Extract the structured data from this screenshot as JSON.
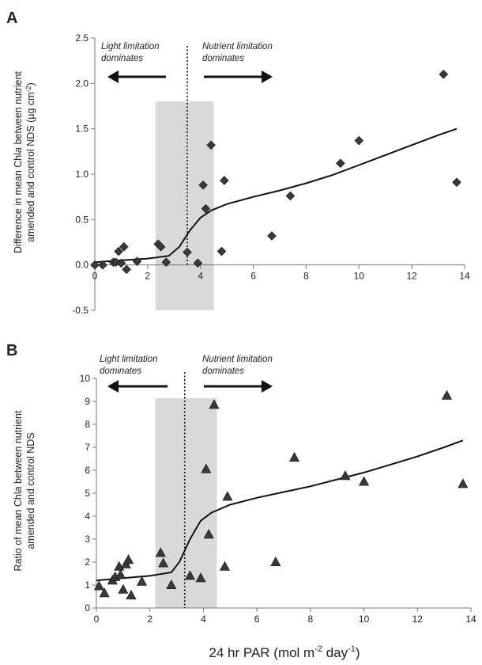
{
  "chart_data": [
    {
      "panel": "A",
      "type": "scatter",
      "ylabel_lines": [
        "Difference in mean  Chl",
        "a",
        " between nutrient",
        "amended and control NDS (µg cm",
        "-2",
        ")"
      ],
      "xlim": [
        0,
        14
      ],
      "ylim": [
        -0.5,
        2.5
      ],
      "xticks": [
        "0",
        "2",
        "4",
        "6",
        "8",
        "10",
        "12",
        "14"
      ],
      "yticks": [
        "-0.5",
        "0.0",
        "0.5",
        "1.0",
        "1.5",
        "2.0",
        "2.5"
      ],
      "threshold_x": 3.5,
      "shaded_range": [
        2.3,
        4.5
      ],
      "annotations": {
        "left_line1": "Light limitation",
        "left_line2": "dominates",
        "right_line1": "Nutrient limitation",
        "right_line2": "dominates"
      },
      "marker": "diamond",
      "points": [
        [
          0,
          0.0
        ],
        [
          0.3,
          0.0
        ],
        [
          0.7,
          0.03
        ],
        [
          0.8,
          0.03
        ],
        [
          0.9,
          0.15
        ],
        [
          1.0,
          0.02
        ],
        [
          1.1,
          0.2
        ],
        [
          1.2,
          -0.05
        ],
        [
          1.6,
          0.04
        ],
        [
          2.4,
          0.23
        ],
        [
          2.5,
          0.2
        ],
        [
          2.7,
          0.03
        ],
        [
          3.5,
          0.14
        ],
        [
          3.9,
          0.02
        ],
        [
          4.1,
          0.88
        ],
        [
          4.2,
          0.62
        ],
        [
          4.4,
          1.32
        ],
        [
          4.8,
          0.15
        ],
        [
          4.9,
          0.93
        ],
        [
          6.7,
          0.32
        ],
        [
          7.4,
          0.76
        ],
        [
          9.3,
          1.12
        ],
        [
          10.0,
          1.37
        ],
        [
          13.2,
          2.1
        ],
        [
          13.7,
          0.91
        ]
      ],
      "trend": [
        [
          0,
          0.03
        ],
        [
          1,
          0.05
        ],
        [
          2,
          0.07
        ],
        [
          2.8,
          0.1
        ],
        [
          3.2,
          0.2
        ],
        [
          3.6,
          0.38
        ],
        [
          4.0,
          0.52
        ],
        [
          4.4,
          0.6
        ],
        [
          5,
          0.67
        ],
        [
          6,
          0.75
        ],
        [
          7,
          0.82
        ],
        [
          8,
          0.9
        ],
        [
          9,
          0.99
        ],
        [
          10,
          1.1
        ],
        [
          11,
          1.21
        ],
        [
          12,
          1.32
        ],
        [
          13,
          1.43
        ],
        [
          13.7,
          1.5
        ]
      ]
    },
    {
      "panel": "B",
      "type": "scatter",
      "ylabel_lines": [
        "Ratio of mean Chl",
        "a",
        " between nutrient",
        "amended and control NDS"
      ],
      "xlim": [
        0,
        14
      ],
      "ylim": [
        0,
        10
      ],
      "xticks": [
        "0",
        "2",
        "4",
        "6",
        "8",
        "10",
        "12",
        "14"
      ],
      "yticks": [
        "0",
        "1",
        "2",
        "3",
        "4",
        "5",
        "6",
        "7",
        "8",
        "9",
        "10"
      ],
      "threshold_x": 3.3,
      "shaded_range": [
        2.2,
        4.5
      ],
      "annotations": {
        "left_line1": "Light limitation",
        "left_line2": "dominates",
        "right_line1": "Nutrient limitation",
        "right_line2": "dominates"
      },
      "marker": "triangle",
      "points": [
        [
          0.1,
          0.95
        ],
        [
          0.3,
          0.65
        ],
        [
          0.6,
          1.2
        ],
        [
          0.7,
          1.35
        ],
        [
          0.85,
          1.8
        ],
        [
          0.9,
          1.45
        ],
        [
          1.0,
          0.8
        ],
        [
          1.1,
          1.9
        ],
        [
          1.2,
          2.1
        ],
        [
          1.3,
          0.55
        ],
        [
          1.7,
          1.15
        ],
        [
          2.4,
          2.4
        ],
        [
          2.5,
          1.95
        ],
        [
          2.8,
          1.0
        ],
        [
          3.5,
          1.4
        ],
        [
          3.9,
          1.3
        ],
        [
          4.1,
          6.05
        ],
        [
          4.2,
          3.2
        ],
        [
          4.4,
          8.85
        ],
        [
          4.8,
          1.8
        ],
        [
          4.9,
          4.85
        ],
        [
          6.7,
          2.0
        ],
        [
          7.4,
          6.55
        ],
        [
          9.3,
          5.75
        ],
        [
          10.0,
          5.5
        ],
        [
          13.1,
          9.25
        ],
        [
          13.7,
          5.4
        ]
      ],
      "trend": [
        [
          0,
          1.2
        ],
        [
          1,
          1.3
        ],
        [
          2,
          1.4
        ],
        [
          2.8,
          1.55
        ],
        [
          3.1,
          2.0
        ],
        [
          3.5,
          3.0
        ],
        [
          3.9,
          3.8
        ],
        [
          4.3,
          4.15
        ],
        [
          5,
          4.5
        ],
        [
          6,
          4.8
        ],
        [
          7,
          5.05
        ],
        [
          8,
          5.3
        ],
        [
          9,
          5.6
        ],
        [
          10,
          5.9
        ],
        [
          11,
          6.25
        ],
        [
          12,
          6.6
        ],
        [
          13,
          7.0
        ],
        [
          13.7,
          7.3
        ]
      ]
    }
  ],
  "xlabel_parts": [
    "24 hr PAR (mol m",
    "-2",
    " day",
    "-1",
    ")"
  ]
}
